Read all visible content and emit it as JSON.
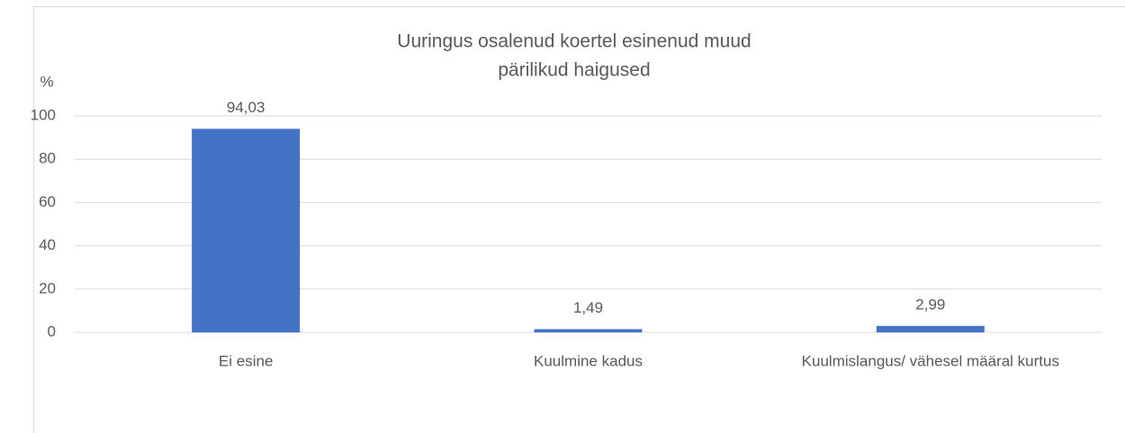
{
  "chart_data": {
    "type": "bar",
    "title": [
      "Uuringus osalenud koertel esinenud muud",
      "pärilikud haigused"
    ],
    "y_label": "%",
    "categories": [
      "Ei esine",
      "Kuulmine kadus",
      "Kuulmislangus/ vähesel määral kurtus"
    ],
    "values": [
      94.03,
      1.49,
      2.99
    ],
    "value_labels": [
      "94,03",
      "1,49",
      "2,99"
    ],
    "color": "#4472c4",
    "ylim": [
      0,
      100
    ],
    "yticks": [
      0,
      20,
      40,
      60,
      80,
      100
    ],
    "grid": true
  }
}
